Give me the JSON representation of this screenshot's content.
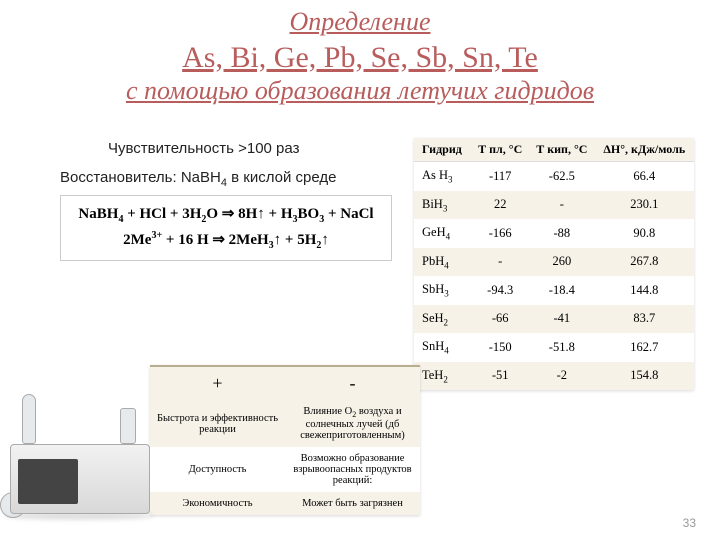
{
  "title": {
    "line1": "Определение",
    "elements": "As, Bi, Ge, Pb, Se, Sb, Sn, Te",
    "line3": "с помощью образования летучих гидридов"
  },
  "sensitivity": "Чувствительность >100 раз",
  "reducer_prefix": "Восстановитель: NaBH",
  "reducer_suffix": " в кислой среде",
  "equation1_html": "NaBH<sub>4</sub> + HCl + 3H<sub>2</sub>O ⇒ 8H↑ + H<sub>3</sub>BO<sub>3</sub> + NaCl",
  "equation2_html": "2Me<sup>3+</sup> + 16 H ⇒ 2MeH<sub>3</sub>↑ + 5H<sub>2</sub>↑",
  "hydride_table": {
    "headers": [
      "Гидрид",
      "Т пл, °С",
      "Т кип, °С",
      "ΔН°, кДж/моль"
    ],
    "rows": [
      {
        "name_html": "As H<sub>3</sub>",
        "tm": "-117",
        "tb": "-62.5",
        "dh": "66.4"
      },
      {
        "name_html": "BiH<sub>3</sub>",
        "tm": "22",
        "tb": "-",
        "dh": "230.1"
      },
      {
        "name_html": "GeH<sub>4</sub>",
        "tm": "-166",
        "tb": "-88",
        "dh": "90.8"
      },
      {
        "name_html": "PbH<sub>4</sub>",
        "tm": "-",
        "tb": "260",
        "dh": "267.8"
      },
      {
        "name_html": "SbH<sub>3</sub>",
        "tm": "-94.3",
        "tb": "-18.4",
        "dh": "144.8"
      },
      {
        "name_html": "SeH<sub>2</sub>",
        "tm": "-66",
        "tb": "-41",
        "dh": "83.7"
      },
      {
        "name_html": "SnH<sub>4</sub>",
        "tm": "-150",
        "tb": "-51.8",
        "dh": "162.7"
      },
      {
        "name_html": "TeH<sub>2</sub>",
        "tm": "-51",
        "tb": "-2",
        "dh": "154.8"
      }
    ]
  },
  "pm_table": {
    "headers": [
      "+",
      "-"
    ],
    "rows": [
      {
        "plus": "Быстрота и эффективность реакции",
        "minus_html": "Влияние O<sub>2</sub> воздуха и солнечных лучей (дб свежеприготовленным)"
      },
      {
        "plus": "Доступность",
        "minus_html": "Возможно образование взрывоопасных продуктов реакций:"
      },
      {
        "plus": "Экономичность",
        "minus_html": "Может быть загрязнен"
      }
    ]
  },
  "slide_number": "33",
  "colors": {
    "accent": "#b85c5c",
    "table_header_bg": "#f7f2e8"
  }
}
